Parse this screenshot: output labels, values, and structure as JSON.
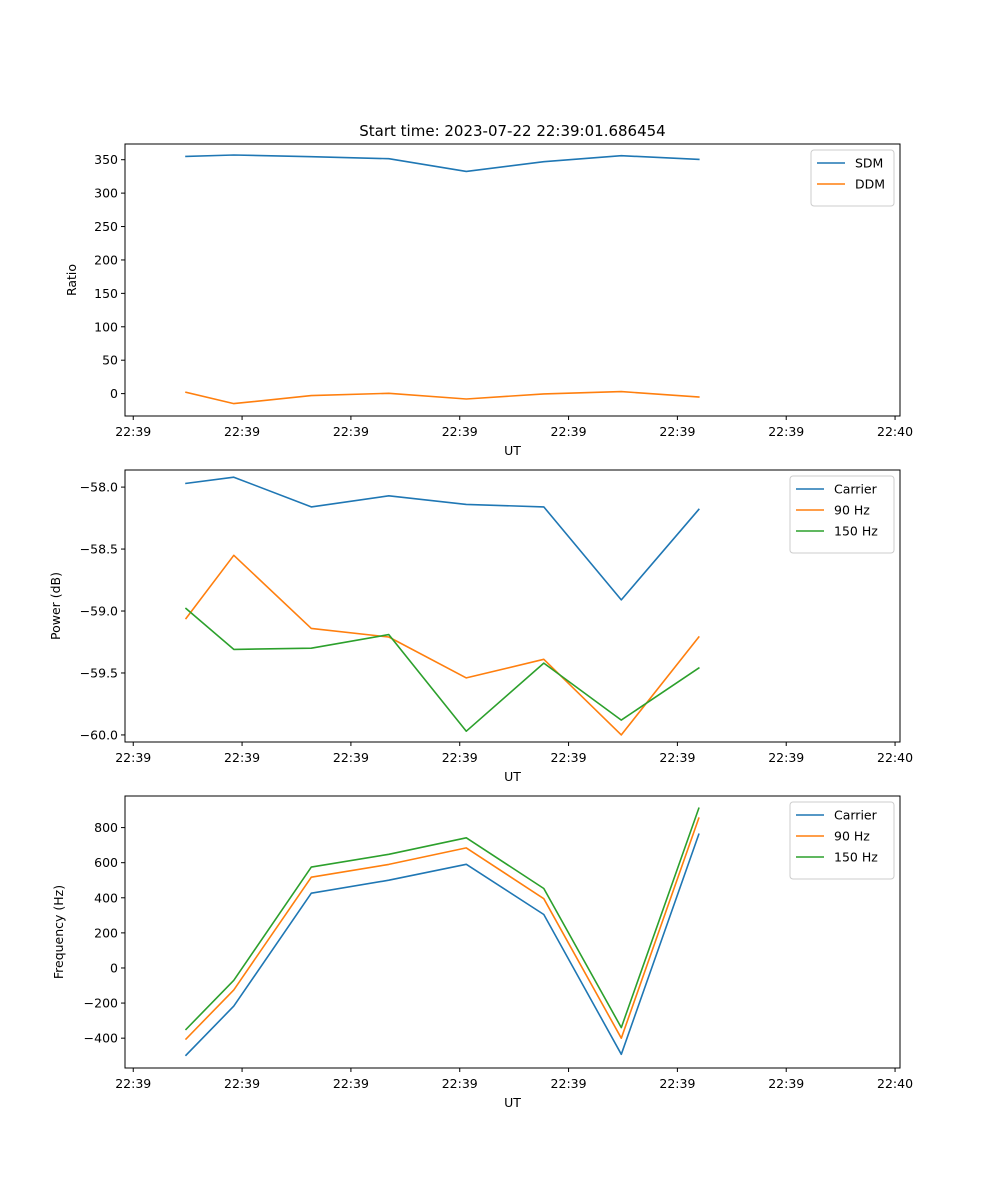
{
  "figure_title": "Start time: 2023-07-22 22:39:01.686454",
  "colors": {
    "blue": "#1f77b4",
    "orange": "#ff7f0e",
    "green": "#2ca02c"
  },
  "chart_data": [
    {
      "type": "line",
      "title": "Start time: 2023-07-22 22:39:01.686454",
      "xlabel": "UT",
      "ylabel": "Ratio",
      "x_tick_labels": [
        "22:39",
        "22:39",
        "22:39",
        "22:39",
        "22:39",
        "22:39",
        "22:39",
        "22:40"
      ],
      "y_ticks": [
        0,
        50,
        100,
        150,
        200,
        250,
        300,
        350
      ],
      "y_tick_labels": [
        "0",
        "50",
        "100",
        "150",
        "200",
        "250",
        "300",
        "350"
      ],
      "ylim": [
        -33.5,
        373.5
      ],
      "xlim": [
        -0.05,
        4.65
      ],
      "x": [
        0.32,
        0.61,
        1.08,
        1.55,
        2.02,
        2.49,
        2.96,
        3.43
      ],
      "legend_position": "upper-right",
      "series": [
        {
          "name": "SDM",
          "color": "#1f77b4",
          "values": [
            355,
            357,
            354.5,
            351.5,
            332.5,
            347,
            356,
            350.5
          ]
        },
        {
          "name": "DDM",
          "color": "#ff7f0e",
          "values": [
            2,
            -15,
            -3,
            0.5,
            -8,
            -0.5,
            3,
            -5
          ]
        }
      ]
    },
    {
      "type": "line",
      "title": "",
      "xlabel": "UT",
      "ylabel": "Power (dB)",
      "x_tick_labels": [
        "22:39",
        "22:39",
        "22:39",
        "22:39",
        "22:39",
        "22:39",
        "22:39",
        "22:40"
      ],
      "y_ticks": [
        -60.0,
        -59.5,
        -59.0,
        -58.5,
        -58.0
      ],
      "y_tick_labels": [
        "−60.0",
        "−59.5",
        "−59.0",
        "−58.5",
        "−58.0"
      ],
      "ylim": [
        -60.057,
        -57.862
      ],
      "xlim": [
        -0.05,
        4.65
      ],
      "x": [
        0.32,
        0.61,
        1.08,
        1.55,
        2.02,
        2.49,
        2.96,
        3.43
      ],
      "legend_position": "upper-right",
      "series": [
        {
          "name": "Carrier",
          "color": "#1f77b4",
          "values": [
            -57.97,
            -57.92,
            -58.16,
            -58.07,
            -58.14,
            -58.16,
            -58.91,
            -58.18
          ]
        },
        {
          "name": "90 Hz",
          "color": "#ff7f0e",
          "values": [
            -59.06,
            -58.55,
            -59.14,
            -59.21,
            -59.54,
            -59.39,
            -60.0,
            -59.21
          ]
        },
        {
          "name": "150 Hz",
          "color": "#2ca02c",
          "values": [
            -58.98,
            -59.31,
            -59.3,
            -59.19,
            -59.97,
            -59.42,
            -59.88,
            -59.46
          ]
        }
      ]
    },
    {
      "type": "line",
      "title": "",
      "xlabel": "UT",
      "ylabel": "Frequency (Hz)",
      "x_tick_labels": [
        "22:39",
        "22:39",
        "22:39",
        "22:39",
        "22:39",
        "22:39",
        "22:39",
        "22:40"
      ],
      "y_ticks": [
        -400,
        -200,
        0,
        200,
        400,
        600,
        800
      ],
      "y_tick_labels": [
        "−400",
        "−200",
        "0",
        "200",
        "400",
        "600",
        "800"
      ],
      "ylim": [
        -570,
        980
      ],
      "xlim": [
        -0.05,
        4.65
      ],
      "x": [
        0.32,
        0.61,
        1.08,
        1.55,
        2.02,
        2.49,
        2.96,
        3.43
      ],
      "legend_position": "upper-right",
      "series": [
        {
          "name": "Carrier",
          "color": "#1f77b4",
          "values": [
            -497,
            -217,
            426,
            500,
            591,
            305,
            -492,
            762
          ]
        },
        {
          "name": "90 Hz",
          "color": "#ff7f0e",
          "values": [
            -405,
            -125,
            517,
            590,
            684,
            395,
            -400,
            854
          ]
        },
        {
          "name": "150 Hz",
          "color": "#2ca02c",
          "values": [
            -350,
            -70,
            575,
            648,
            742,
            453,
            -340,
            910
          ]
        }
      ]
    }
  ]
}
